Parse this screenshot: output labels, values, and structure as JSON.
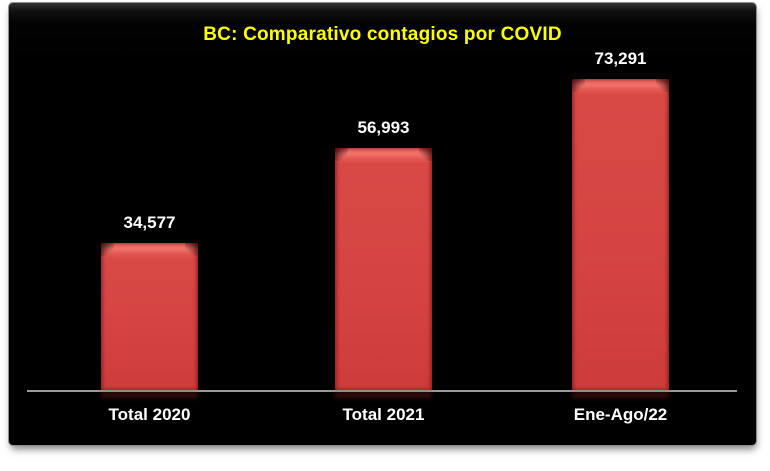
{
  "page": {
    "background": "#ffffff"
  },
  "chart": {
    "background": "#000000",
    "border_color": "#8f8f8f",
    "title_color": "#ffff00",
    "bar_color": "#d54442",
    "bar_highlight_color": "#f1726c",
    "label_color": "#ffffff",
    "axis_color": "#9a9a9a"
  },
  "chart_data": {
    "type": "bar",
    "title": "BC: Comparativo contagios por COVID",
    "categories": [
      "Total 2020",
      "Total 2021",
      "Ene-Ago/22"
    ],
    "values": [
      34577,
      56993,
      73291
    ],
    "data_labels": [
      "34,577",
      "56,993",
      "73,291"
    ],
    "xlabel": "",
    "ylabel": "",
    "ylim": [
      0,
      80000
    ],
    "grid": false,
    "legend": false,
    "data_labels_position": "above-bar",
    "orientation": "vertical"
  }
}
